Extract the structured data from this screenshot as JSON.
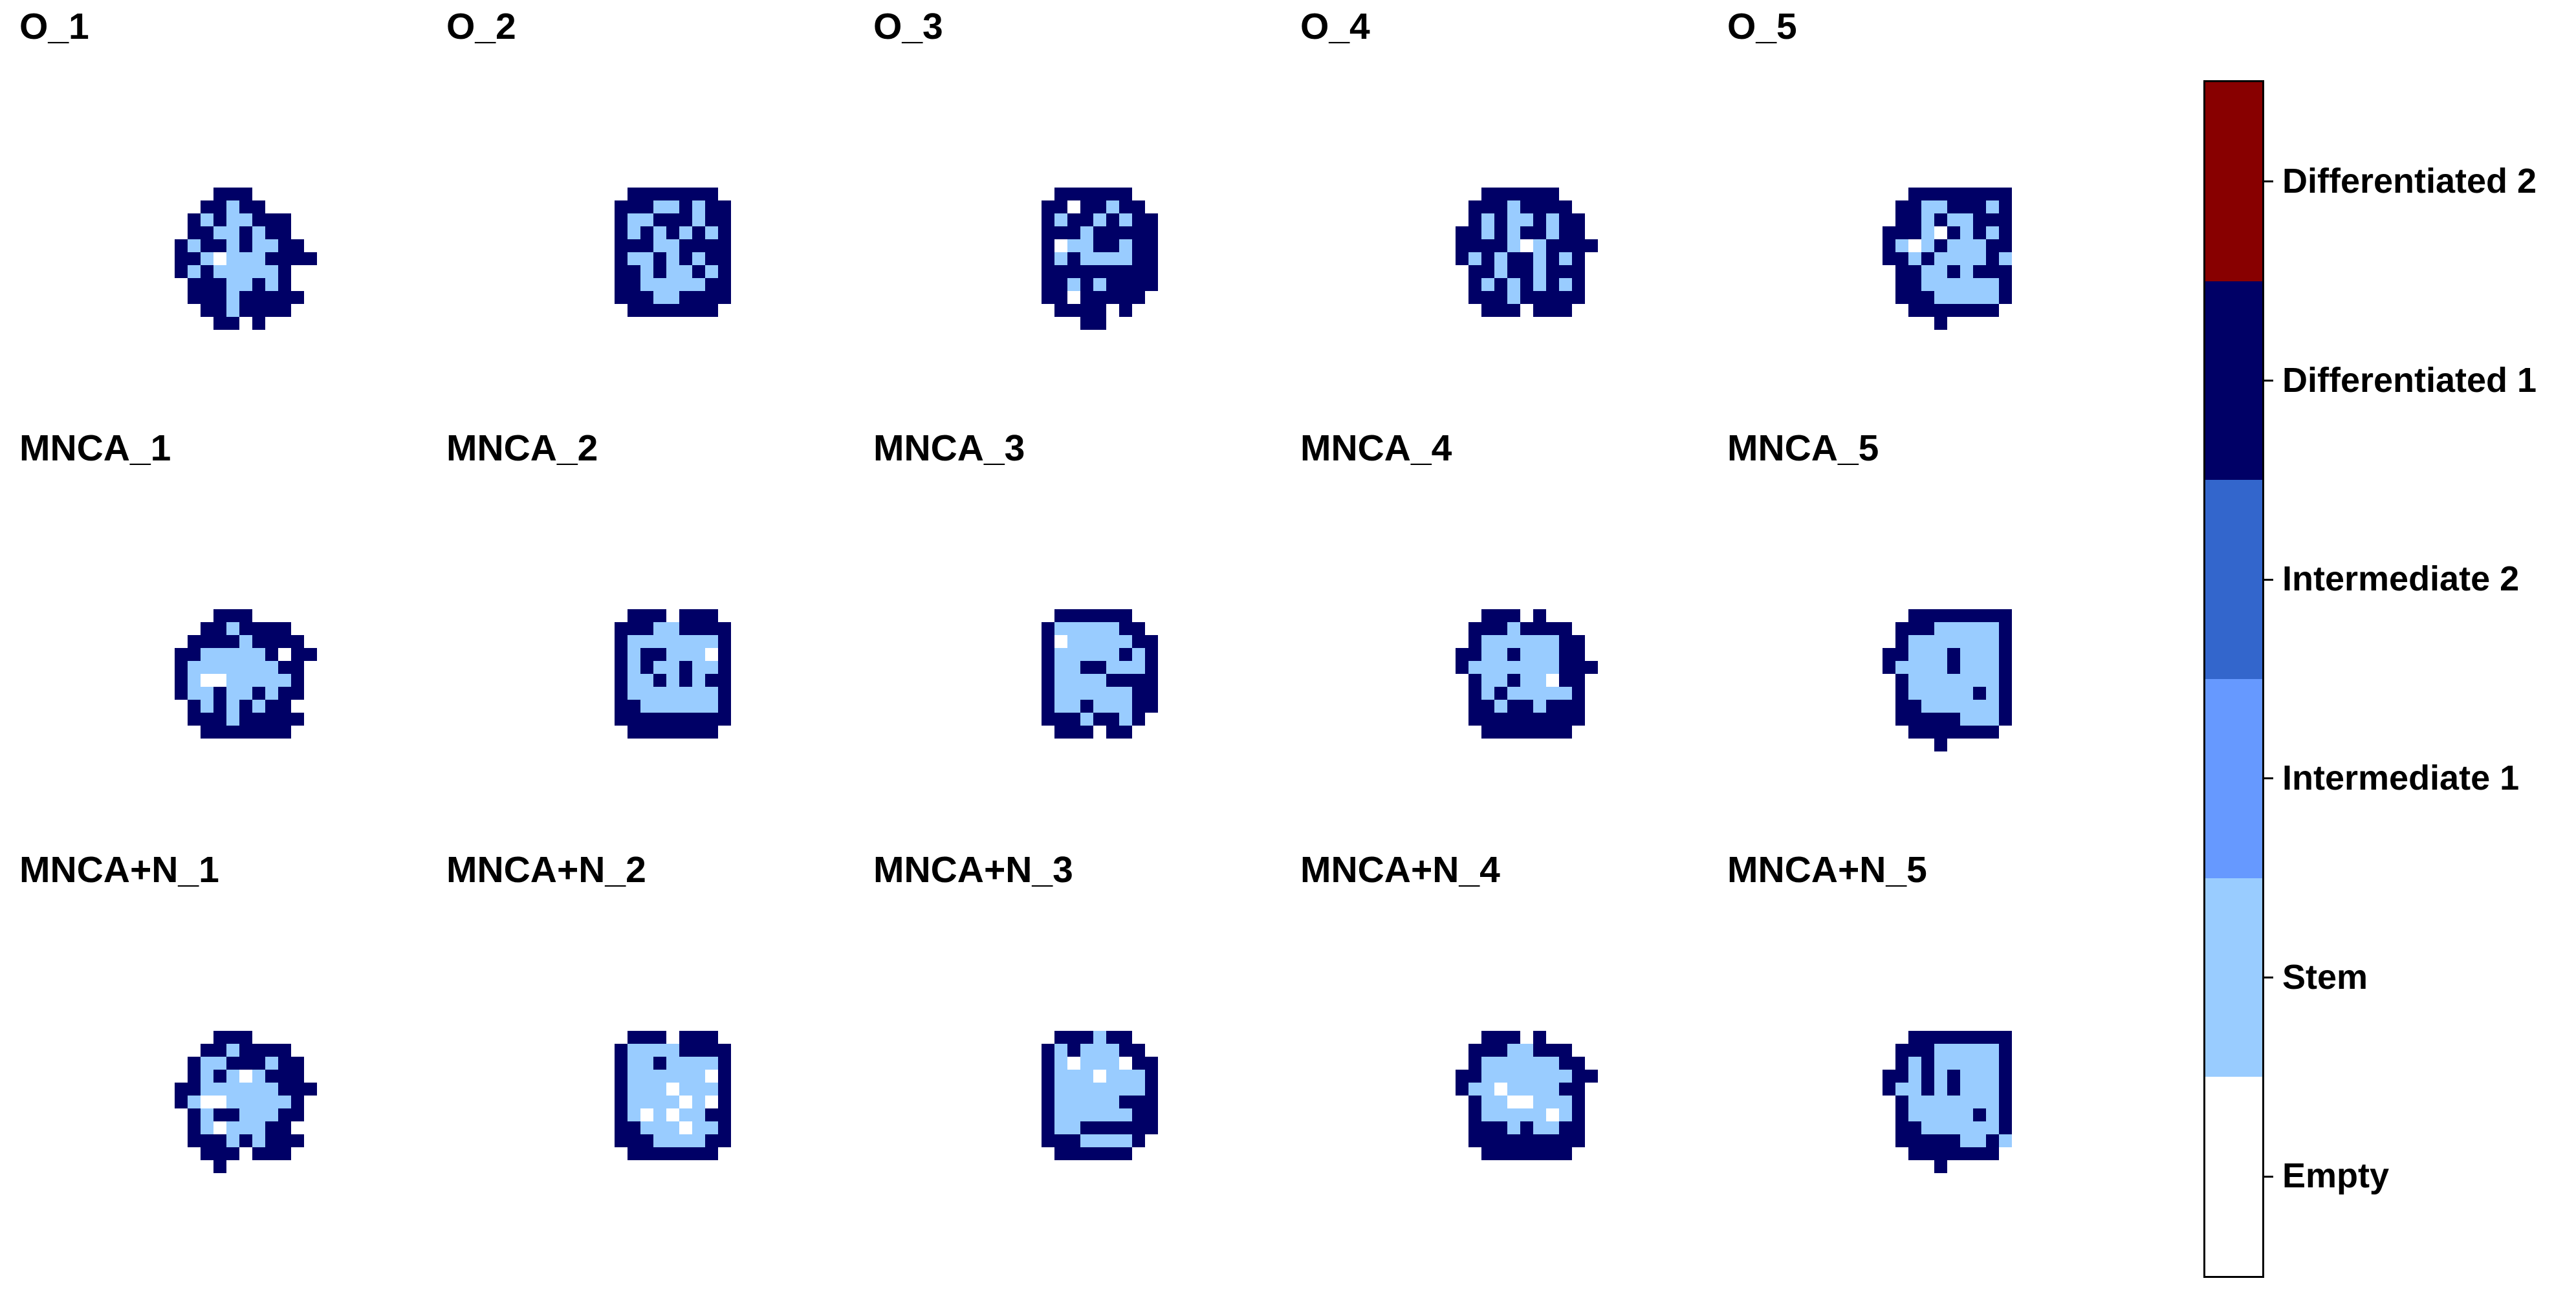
{
  "chart_data": {
    "type": "heatmap",
    "description_of_grids": "5x3 panel of cellular lattice snapshots; cell codes 0=Empty,1=Stem,2=Intermediate 1,3=Intermediate 2,4=Differentiated 1,5=Differentiated 2",
    "panels": [
      {
        "title": "O_1",
        "grid": [
          "000000000000",
          "000044400000",
          "000441440000",
          "004141144400",
          "004411414400",
          "041441411440",
          "044101114444",
          "041411111400",
          "004441141400",
          "004441444440",
          "000441444400",
          "000044040000"
        ]
      },
      {
        "title": "O_2",
        "grid": [
          "000000000000",
          "000444444400",
          "004441141440",
          "004114441440",
          "004141414140",
          "004441144440",
          "004114141440",
          "004414114140",
          "004411111440",
          "004441144440",
          "000444444400",
          "000000000000"
        ]
      },
      {
        "title": "O_3",
        "grid": [
          "000000000000",
          "000444444000",
          "004404414400",
          "004144141440",
          "004441444440",
          "004011441440",
          "004141111440",
          "004444444440",
          "004414144440",
          "004404444400",
          "000444404000",
          "000004400000"
        ]
      },
      {
        "title": "O_4",
        "grid": [
          "000000000000",
          "000444444000",
          "004441444400",
          "004141141440",
          "044141441440",
          "044441014444",
          "041414414140",
          "004414414440",
          "004141414140",
          "004441444440",
          "000444044400",
          "000000000000"
        ]
      },
      {
        "title": "O_5",
        "grid": [
          "000000000000",
          "000444444440",
          "004411444140",
          "004414114440",
          "044410414140",
          "041014111440",
          "044141111410",
          "004411414440",
          "004411111140",
          "004441111140",
          "000444444400",
          "000004000000"
        ]
      },
      {
        "title": "MNCA_1",
        "grid": [
          "000000000000",
          "000044400000",
          "000441444400",
          "004444144440",
          "044111114044",
          "041111111440",
          "041001111140",
          "041141141440",
          "004141414400",
          "004441444440",
          "000444444400",
          "000000000000"
        ]
      },
      {
        "title": "MNCA_2",
        "grid": [
          "000000000000",
          "000444044400",
          "004441144440",
          "004111111140",
          "004144111040",
          "004141141140",
          "004114141440",
          "004111111140",
          "004411111140",
          "004444444440",
          "000444444400",
          "000000000000"
        ]
      },
      {
        "title": "MNCA_3",
        "grid": [
          "000000000000",
          "000444444000",
          "004111114400",
          "004011111440",
          "004111114140",
          "004114411140",
          "004111144440",
          "004111111440",
          "004114111440",
          "004441441400",
          "000444044000",
          "000000000000"
        ]
      },
      {
        "title": "MNCA_4",
        "grid": [
          "000000000000",
          "000444040000",
          "004441444400",
          "004111111440",
          "044114111440",
          "041111111444",
          "004114110440",
          "004141111140",
          "004414414440",
          "004444444440",
          "000444444400",
          "000000000000"
        ]
      },
      {
        "title": "MNCA_5",
        "grid": [
          "000000000000",
          "000444444440",
          "004441111140",
          "004111111140",
          "044111411140",
          "041111411140",
          "004111111140",
          "004111114140",
          "004411111140",
          "004444411140",
          "000444444400",
          "000004000000"
        ]
      },
      {
        "title": "MNCA+N_1",
        "grid": [
          "000000000000",
          "000044400000",
          "000441444400",
          "004114441440",
          "004141014440",
          "044111111444",
          "041001111140",
          "004144111440",
          "004101114400",
          "004441414440",
          "000444044400",
          "000040000000"
        ]
      },
      {
        "title": "MNCA+N_2",
        "grid": [
          "000000000000",
          "000444044400",
          "004111144440",
          "004114111140",
          "004111111040",
          "004111011140",
          "004111101040",
          "004101011440",
          "004411101140",
          "004441111440",
          "000444444400",
          "000000000000"
        ]
      },
      {
        "title": "MNCA+N_3",
        "grid": [
          "000000000000",
          "000444144000",
          "004141114400",
          "004101110440",
          "004111011140",
          "004111111140",
          "004111114440",
          "004111111440",
          "004114444440",
          "004441111400",
          "000444444000",
          "000000000000"
        ]
      },
      {
        "title": "MNCA+N_4",
        "grid": [
          "000000000000",
          "000444040000",
          "004441144400",
          "004111111440",
          "044111111144",
          "041101111440",
          "004110011140",
          "004111110140",
          "004441411440",
          "004444444440",
          "000444444400",
          "000000000000"
        ]
      },
      {
        "title": "MNCA+N_5",
        "grid": [
          "000000000000",
          "000444444440",
          "004441111140",
          "004141111140",
          "044141411140",
          "041141411140",
          "004111111140",
          "004111114140",
          "004411111140",
          "004444411410",
          "000444444400",
          "000004000000"
        ]
      }
    ],
    "colorbar": {
      "labels": [
        "Empty",
        "Stem",
        "Intermediate 1",
        "Intermediate 2",
        "Differentiated 1",
        "Differentiated 2"
      ],
      "colors": [
        "#ffffff",
        "#99ccff",
        "#6699ff",
        "#3366cc",
        "#000066",
        "#880000"
      ]
    }
  }
}
